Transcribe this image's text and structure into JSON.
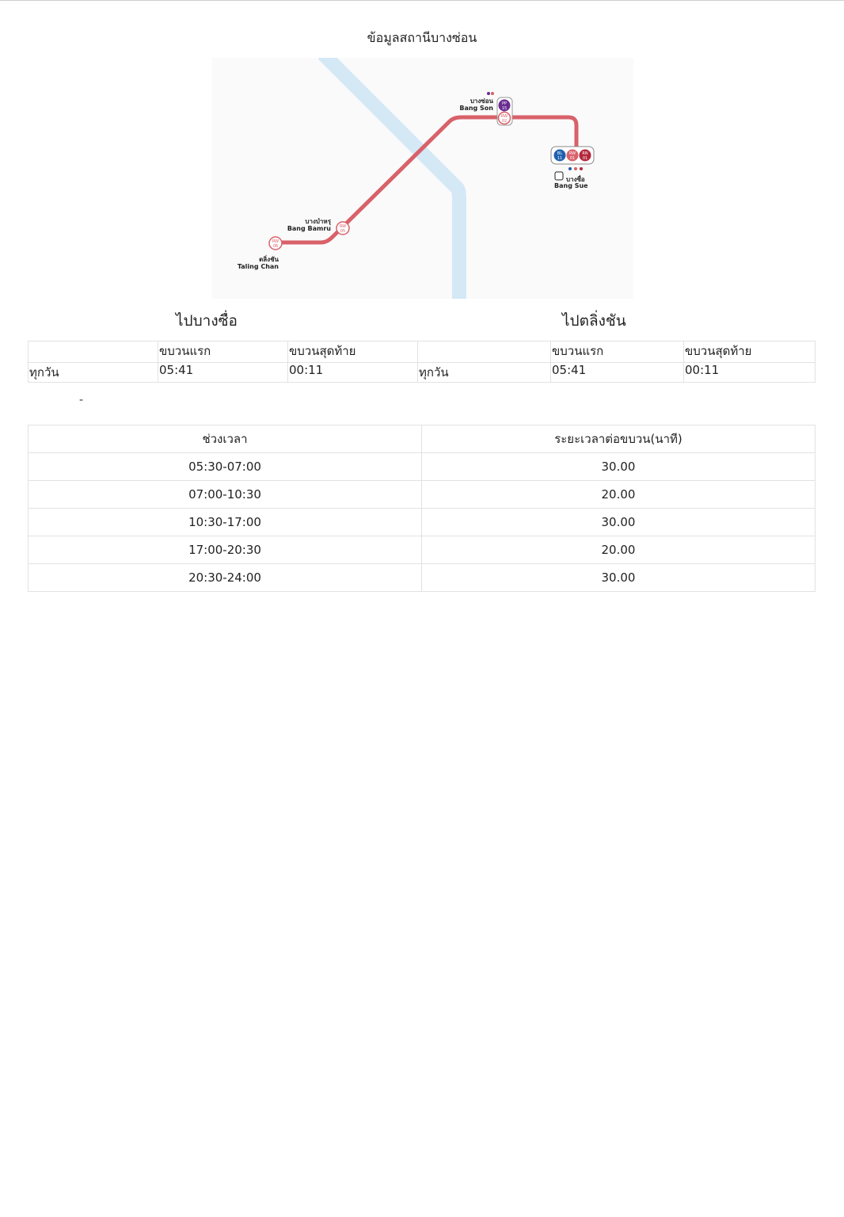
{
  "page": {
    "title": "ข้อมูลสถานีบางซ่อน"
  },
  "map": {
    "line_color": "#d8616a",
    "river_color": "#cfe6f5",
    "stations": {
      "bang_son": {
        "th": "บางซ่อน",
        "en": "Bang Son",
        "codes": [
          "PP 15",
          "RW 02"
        ]
      },
      "bang_sue": {
        "th": "บางซื่อ",
        "en": "Bang Sue",
        "codes": [
          "BL 11",
          "RW 01",
          "RN 01"
        ]
      },
      "bang_bamru": {
        "th": "บางบำหรุ",
        "en": "Bang Bamru",
        "codes": [
          "RW 05"
        ]
      },
      "taling_chan": {
        "th": "ตลิ่งชัน",
        "en": "Taling Chan",
        "codes": [
          "RW 06"
        ]
      }
    },
    "colors": {
      "purple": "#6a2c91",
      "blue": "#1f5fae",
      "red": "#d8616a",
      "darkred": "#b3263a"
    }
  },
  "directions": [
    {
      "heading": "ไปบางซื่อ",
      "columns": [
        "",
        "ขบวนแรก",
        "ขบวนสุดท้าย"
      ],
      "rows": [
        {
          "day": "ทุกวัน",
          "first": "05:41",
          "last": "00:11"
        }
      ]
    },
    {
      "heading": "ไปตลิ่งชัน",
      "columns": [
        "",
        "ขบวนแรก",
        "ขบวนสุดท้าย"
      ],
      "rows": [
        {
          "day": "ทุกวัน",
          "first": "05:41",
          "last": "00:11"
        }
      ]
    }
  ],
  "dash_text": "-",
  "headway": {
    "headers": [
      "ช่วงเวลา",
      "ระยะเวลาต่อขบวน(นาที)"
    ],
    "rows": [
      {
        "period": "05:30-07:00",
        "minutes": "30.00"
      },
      {
        "period": "07:00-10:30",
        "minutes": "20.00"
      },
      {
        "period": "10:30-17:00",
        "minutes": "30.00"
      },
      {
        "period": "17:00-20:30",
        "minutes": "20.00"
      },
      {
        "period": "20:30-24:00",
        "minutes": "30.00"
      }
    ]
  }
}
